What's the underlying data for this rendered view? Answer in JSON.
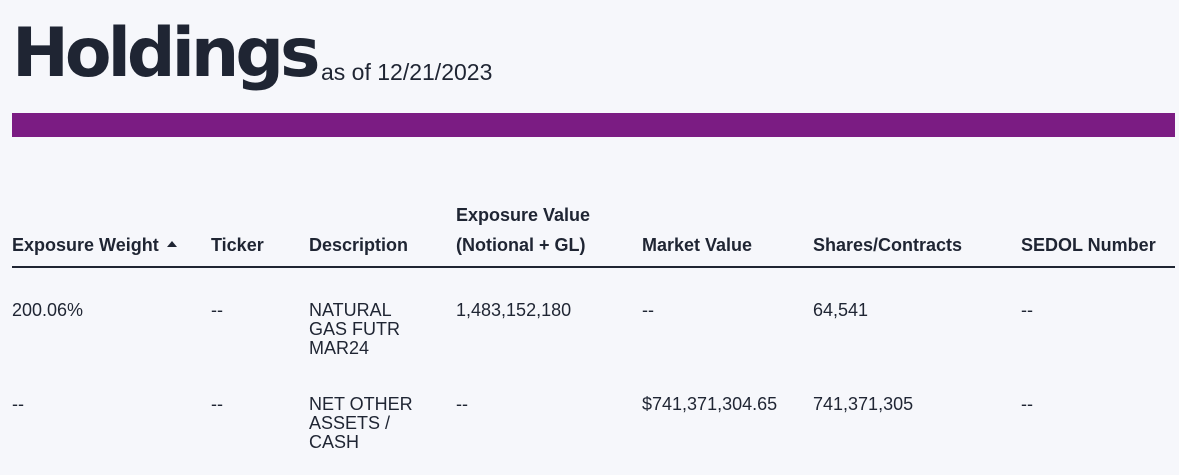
{
  "header": {
    "title": "Holdings",
    "as_of": "as of 12/21/2023",
    "accent_color": "#7b1c83"
  },
  "table": {
    "columns": [
      {
        "label": "Exposure Weight",
        "sorted": "ascending"
      },
      {
        "label": "Ticker"
      },
      {
        "label": "Description"
      },
      {
        "label_line1": "Exposure Value",
        "label_line2": "(Notional + GL)"
      },
      {
        "label": "Market Value"
      },
      {
        "label": "Shares/Contracts"
      },
      {
        "label": "SEDOL Number"
      }
    ],
    "rows": [
      {
        "exposure_weight": "200.06%",
        "ticker": "--",
        "description": "NATURAL GAS FUTR MAR24",
        "exposure_value": "1,483,152,180",
        "market_value": "--",
        "shares_contracts": "64,541",
        "sedol": "--"
      },
      {
        "exposure_weight": "--",
        "ticker": "--",
        "description": "NET OTHER ASSETS / CASH",
        "exposure_value": "--",
        "market_value": "$741,371,304.65",
        "shares_contracts": "741,371,305",
        "sedol": "--"
      }
    ]
  }
}
